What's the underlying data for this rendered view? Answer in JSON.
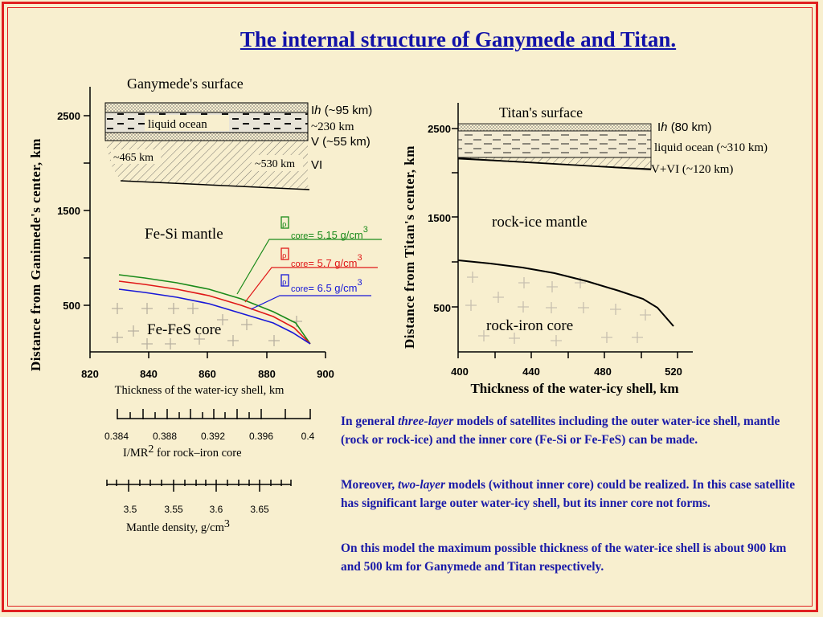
{
  "title": "The internal structure of Ganymede and Titan.",
  "ganymede": {
    "surface_label": "Ganymede's surface",
    "layer_ih": "I",
    "layer_ih_h": "h",
    "layer_ih_thickness": "(~95 km)",
    "liquid_ocean": "liquid ocean",
    "ocean_thickness": "~230 km",
    "layer_v": "V (~55 km)",
    "layer_vi": "VI",
    "depth_465": "~465 km",
    "depth_530": "~530 km",
    "mantle_label": "Fe-Si mantle",
    "core_label": "Fe-FeS core",
    "ylabel": "Distance from Ganimede's center, km",
    "xlabel": "Thickness of the water-icy shell, km",
    "yticks": [
      "2500",
      "1500",
      "500"
    ],
    "xticks": [
      "820",
      "840",
      "860",
      "880",
      "900"
    ],
    "rho_symbol": "ρ",
    "rho_sub": "core",
    "rho_values": [
      "= 5.15 g/cm",
      "= 5.7 g/cm",
      "= 6.5 g/cm"
    ],
    "rho_exp": "3",
    "imr_ticks": [
      "0.384",
      "0.388",
      "0.392",
      "0.396",
      "0.4"
    ],
    "imr_label": "I/MR",
    "imr_exp": "2",
    "imr_label_rest": "for rock–iron core",
    "density_ticks": [
      "3.5",
      "3.55",
      "3.6",
      "3.65"
    ],
    "density_label": "Mantle density, g/cm",
    "density_exp": "3"
  },
  "titan": {
    "surface_label": "Titan's surface",
    "layer_ih": "I",
    "layer_ih_h": "h",
    "layer_ih_thickness": "(80 km)",
    "liquid_ocean": "liquid ocean (~310 km)",
    "layer_vvi": "V+VI (~120 km)",
    "mantle_label": "rock-ice mantle",
    "core_label": "rock-iron core",
    "ylabel": "Distance from Titan's center, km",
    "xlabel": "Thickness of the water-icy shell, km",
    "yticks": [
      "2500",
      "1500",
      "500"
    ],
    "xticks": [
      "400",
      "440",
      "480",
      "520"
    ]
  },
  "text": {
    "p1_a": "In general ",
    "p1_italic": "three-layer",
    "p1_b": " models of satellites including the outer water-ice shell, mantle (rock or rock-ice) and the inner core (Fe-Si or Fe-FeS) can be made.",
    "p2_a": "Moreover, ",
    "p2_italic": "two-layer",
    "p2_b": " models (without inner core) could be realized. In this case satellite has significant large outer water-icy shell, but its inner core not forms.",
    "p3": "On this model the maximum possible thickness of the water-ice shell is about 900 km and 500 km for Ganymede and Titan respectively."
  },
  "colors": {
    "background": "#f8efcf",
    "border": "#e02020",
    "title": "#1212a8",
    "paragraph": "#1a1aa8",
    "curve_green": "#1a8a1a",
    "curve_red": "#e01818",
    "curve_blue": "#1818d8"
  }
}
